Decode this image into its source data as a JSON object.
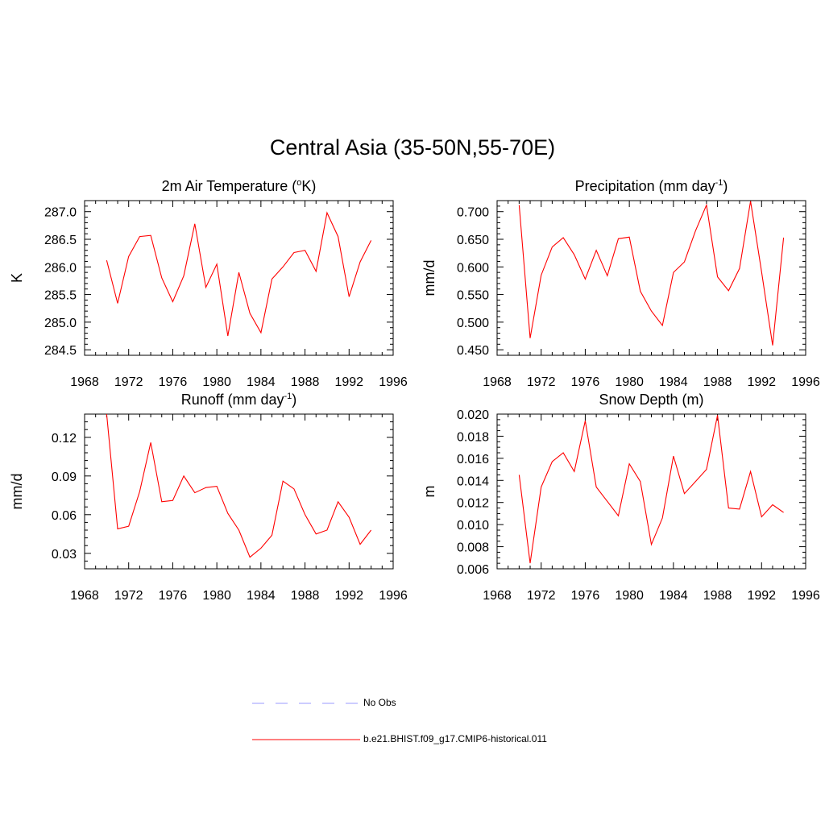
{
  "title": "Central Asia (35-50N,55-70E)",
  "colors": {
    "model_line": "#ff0000",
    "obs_line": "#9999ff",
    "axis": "#000000"
  },
  "legend": {
    "obs_label": "No Obs",
    "model_label": "b.e21.BHIST.f09_g17.CMIP6-historical.011"
  },
  "chart_data": [
    {
      "type": "line",
      "title_main": "2m Air Temperature (",
      "title_sup": "o",
      "title_tail": "K)",
      "ylabel": "K",
      "xlim": [
        1968,
        1996
      ],
      "xticks": [
        "1968",
        "1972",
        "1976",
        "1980",
        "1984",
        "1988",
        "1992",
        "1996"
      ],
      "ylim": [
        284.4,
        287.2
      ],
      "yticks": [
        284.5,
        285.0,
        285.5,
        286.0,
        286.5,
        287.0
      ],
      "ytick_labels": [
        "284.5",
        "285.0",
        "285.5",
        "286.0",
        "286.5",
        "287.0"
      ],
      "yminor": 0.1,
      "x": [
        1970,
        1971,
        1972,
        1973,
        1974,
        1975,
        1976,
        1977,
        1978,
        1979,
        1980,
        1981,
        1982,
        1983,
        1984,
        1985,
        1986,
        1987,
        1988,
        1989,
        1990,
        1991,
        1992,
        1993,
        1994
      ],
      "values": [
        286.12,
        285.34,
        286.19,
        286.55,
        286.57,
        285.8,
        285.37,
        285.84,
        286.78,
        285.63,
        286.05,
        284.75,
        285.9,
        285.16,
        284.81,
        285.78,
        286.0,
        286.26,
        286.3,
        285.92,
        286.98,
        286.55,
        285.46,
        286.09,
        286.48
      ]
    },
    {
      "type": "line",
      "title_main": "Precipitation (mm day",
      "title_sup": "-1",
      "title_tail": ")",
      "ylabel": "mm/d",
      "xlim": [
        1968,
        1996
      ],
      "xticks": [
        "1968",
        "1972",
        "1976",
        "1980",
        "1984",
        "1988",
        "1992",
        "1996"
      ],
      "ylim": [
        0.44,
        0.72
      ],
      "yticks": [
        0.45,
        0.5,
        0.55,
        0.6,
        0.65,
        0.7
      ],
      "ytick_labels": [
        "0.450",
        "0.500",
        "0.550",
        "0.600",
        "0.650",
        "0.700"
      ],
      "yminor": 0.01,
      "x": [
        1970,
        1971,
        1972,
        1973,
        1974,
        1975,
        1976,
        1977,
        1978,
        1979,
        1980,
        1981,
        1982,
        1983,
        1984,
        1985,
        1986,
        1987,
        1988,
        1989,
        1990,
        1991,
        1992,
        1993,
        1994
      ],
      "values": [
        0.712,
        0.471,
        0.585,
        0.636,
        0.653,
        0.622,
        0.578,
        0.63,
        0.584,
        0.651,
        0.654,
        0.556,
        0.52,
        0.494,
        0.59,
        0.609,
        0.665,
        0.712,
        0.582,
        0.557,
        0.597,
        0.719,
        0.591,
        0.458,
        0.653
      ]
    },
    {
      "type": "line",
      "title_main": "Runoff (mm day",
      "title_sup": "-1",
      "title_tail": ")",
      "ylabel": "mm/d",
      "xlim": [
        1968,
        1996
      ],
      "xticks": [
        "1968",
        "1972",
        "1976",
        "1980",
        "1984",
        "1988",
        "1992",
        "1996"
      ],
      "ylim": [
        0.018,
        0.138
      ],
      "yticks": [
        0.03,
        0.06,
        0.09,
        0.12
      ],
      "ytick_labels": [
        "0.03",
        "0.06",
        "0.09",
        "0.12"
      ],
      "yminor": 0.006,
      "x": [
        1970,
        1971,
        1972,
        1973,
        1974,
        1975,
        1976,
        1977,
        1978,
        1979,
        1980,
        1981,
        1982,
        1983,
        1984,
        1985,
        1986,
        1987,
        1988,
        1989,
        1990,
        1991,
        1992,
        1993,
        1994
      ],
      "values": [
        0.138,
        0.049,
        0.051,
        0.078,
        0.116,
        0.07,
        0.071,
        0.09,
        0.077,
        0.081,
        0.082,
        0.061,
        0.048,
        0.027,
        0.034,
        0.044,
        0.086,
        0.08,
        0.06,
        0.045,
        0.048,
        0.07,
        0.058,
        0.037,
        0.048
      ]
    },
    {
      "type": "line",
      "title_main": "Snow Depth (m)",
      "title_sup": "",
      "title_tail": "",
      "ylabel": "m",
      "xlim": [
        1968,
        1996
      ],
      "xticks": [
        "1968",
        "1972",
        "1976",
        "1980",
        "1984",
        "1988",
        "1992",
        "1996"
      ],
      "ylim": [
        0.006,
        0.02
      ],
      "yticks": [
        0.006,
        0.008,
        0.01,
        0.012,
        0.014,
        0.016,
        0.018,
        0.02
      ],
      "ytick_labels": [
        "0.006",
        "0.008",
        "0.010",
        "0.012",
        "0.014",
        "0.016",
        "0.018",
        "0.020"
      ],
      "yminor": 0.0005,
      "x": [
        1970,
        1971,
        1972,
        1973,
        1974,
        1975,
        1976,
        1977,
        1978,
        1979,
        1980,
        1981,
        1982,
        1983,
        1984,
        1985,
        1986,
        1987,
        1988,
        1989,
        1990,
        1991,
        1992,
        1993,
        1994
      ],
      "values": [
        0.0145,
        0.0065,
        0.0134,
        0.0157,
        0.0165,
        0.0148,
        0.0194,
        0.0134,
        0.0121,
        0.0108,
        0.0155,
        0.0139,
        0.0082,
        0.0106,
        0.0162,
        0.0128,
        0.0139,
        0.015,
        0.0199,
        0.0115,
        0.0114,
        0.0148,
        0.0107,
        0.0118,
        0.0111
      ]
    }
  ]
}
